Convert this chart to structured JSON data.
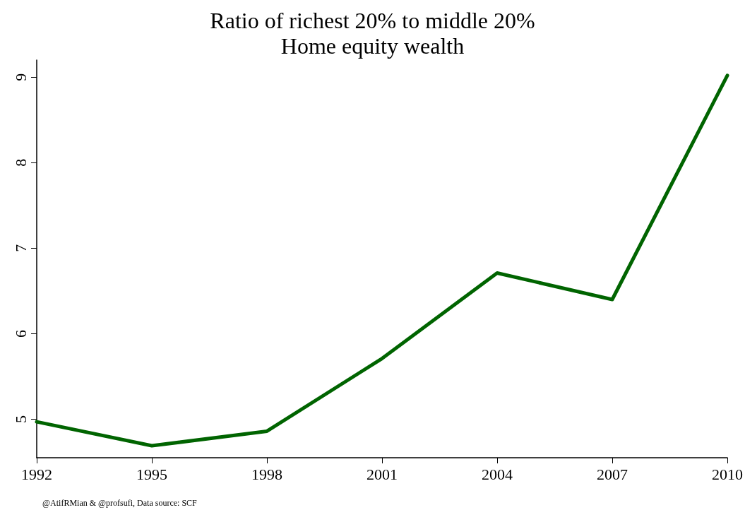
{
  "chart_data": {
    "type": "line",
    "title": "Ratio of richest 20% to middle 20%",
    "subtitle": "Home equity wealth",
    "categories": [
      "1992",
      "1995",
      "1998",
      "2001",
      "2004",
      "2007",
      "2010"
    ],
    "series": [
      {
        "color": "#006400",
        "values": [
          4.97,
          4.69,
          4.86,
          5.71,
          6.71,
          6.4,
          9.02
        ]
      }
    ],
    "ylim": [
      4.55,
      9.2
    ],
    "yticks": [
      5,
      6,
      7,
      8,
      9
    ],
    "grid": false,
    "marker": "none",
    "line_style": "solid",
    "annotations": [
      "@AtifRMian & @profsufi, Data source: SCF"
    ]
  }
}
